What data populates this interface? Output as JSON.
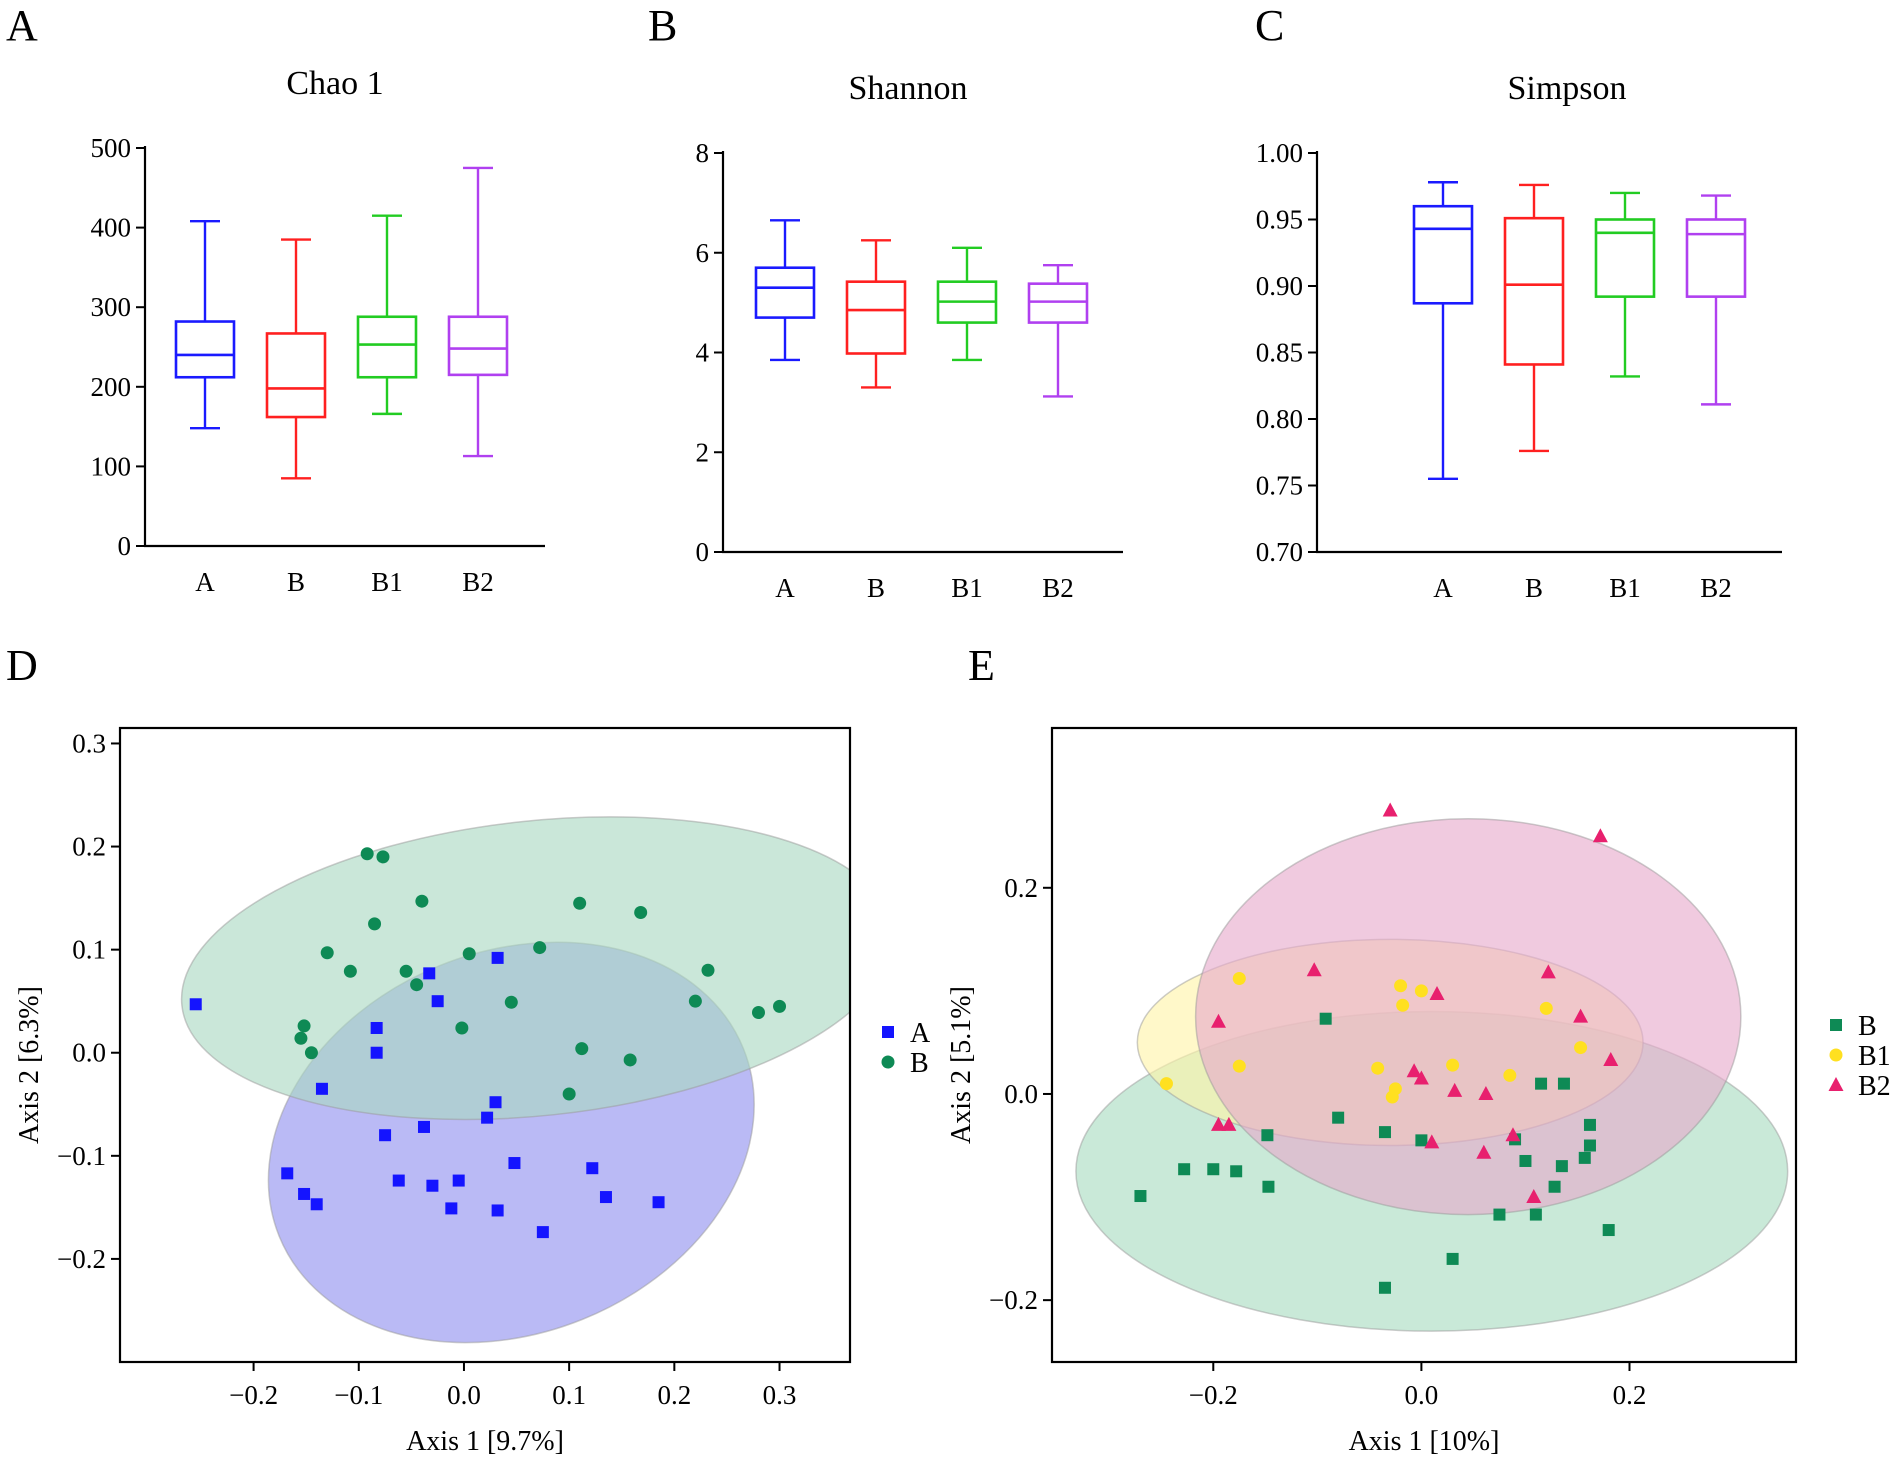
{
  "chart_data": [
    {
      "panel": "A",
      "type": "box",
      "title": "Chao 1",
      "categories": [
        "A",
        "B",
        "B1",
        "B2"
      ],
      "ylim": [
        0,
        500
      ],
      "yticks": [
        "0",
        "100",
        "200",
        "300",
        "400",
        "500"
      ],
      "series": [
        {
          "name": "A",
          "color": "#1a1aff",
          "min": 148,
          "q1": 212,
          "median": 240,
          "q3": 282,
          "max": 408
        },
        {
          "name": "B",
          "color": "#ff2020",
          "min": 85,
          "q1": 162,
          "median": 198,
          "q3": 267,
          "max": 385
        },
        {
          "name": "B1",
          "color": "#22cc22",
          "min": 166,
          "q1": 212,
          "median": 253,
          "q3": 288,
          "max": 415
        },
        {
          "name": "B2",
          "color": "#b040f0",
          "min": 113,
          "q1": 215,
          "median": 248,
          "q3": 288,
          "max": 475
        }
      ]
    },
    {
      "panel": "B",
      "type": "box",
      "title": "Shannon",
      "categories": [
        "A",
        "B",
        "B1",
        "B2"
      ],
      "ylim": [
        0,
        8
      ],
      "yticks": [
        "0",
        "2",
        "4",
        "6",
        "8"
      ],
      "series": [
        {
          "name": "A",
          "color": "#1a1aff",
          "min": 3.85,
          "q1": 4.7,
          "median": 5.3,
          "q3": 5.7,
          "max": 6.65
        },
        {
          "name": "B",
          "color": "#ff2020",
          "min": 3.3,
          "q1": 3.98,
          "median": 4.85,
          "q3": 5.42,
          "max": 6.25
        },
        {
          "name": "B1",
          "color": "#22cc22",
          "min": 3.85,
          "q1": 4.6,
          "median": 5.02,
          "q3": 5.42,
          "max": 6.1
        },
        {
          "name": "B2",
          "color": "#b040f0",
          "min": 3.12,
          "q1": 4.6,
          "median": 5.02,
          "q3": 5.38,
          "max": 5.75
        }
      ]
    },
    {
      "panel": "C",
      "type": "box",
      "title": "Simpson",
      "categories": [
        "A",
        "B",
        "B1",
        "B2"
      ],
      "ylim": [
        0.7,
        1.0
      ],
      "yticks": [
        "0.70",
        "0.75",
        "0.80",
        "0.85",
        "0.90",
        "0.95",
        "1.00"
      ],
      "series": [
        {
          "name": "A",
          "color": "#1a1aff",
          "min": 0.755,
          "q1": 0.887,
          "median": 0.943,
          "q3": 0.96,
          "max": 0.978
        },
        {
          "name": "B",
          "color": "#ff2020",
          "min": 0.776,
          "q1": 0.841,
          "median": 0.901,
          "q3": 0.951,
          "max": 0.976
        },
        {
          "name": "B1",
          "color": "#22cc22",
          "min": 0.832,
          "q1": 0.892,
          "median": 0.94,
          "q3": 0.95,
          "max": 0.97
        },
        {
          "name": "B2",
          "color": "#b040f0",
          "min": 0.811,
          "q1": 0.892,
          "median": 0.939,
          "q3": 0.95,
          "max": 0.968
        }
      ]
    },
    {
      "panel": "D",
      "type": "scatter",
      "xlabel": "Axis 1 [9.7%]",
      "ylabel": "Axis 2 [6.3%]",
      "xlim": [
        -0.327,
        0.367
      ],
      "ylim": [
        -0.3,
        0.315
      ],
      "xticks": [
        -0.2,
        -0.1,
        0.0,
        0.1,
        0.2,
        0.3
      ],
      "xtick_labels": [
        "−0.2",
        "−0.1",
        "0.0",
        "0.1",
        "0.2",
        "0.3"
      ],
      "yticks": [
        -0.2,
        -0.1,
        0.0,
        0.1,
        0.2,
        0.3
      ],
      "ytick_labels": [
        "−0.2",
        "−0.1",
        "0.0",
        "0.1",
        "0.2",
        "0.3"
      ],
      "legend_position": "right",
      "series": [
        {
          "name": "A",
          "marker": "square",
          "color": "#1414ff",
          "ellipse": {
            "cx": 0.045,
            "cy": -0.087,
            "rx": 0.238,
            "ry": 0.185,
            "angle": -22,
            "fill": "#8f8fef"
          },
          "points": [
            [
              -0.255,
              0.047
            ],
            [
              -0.033,
              0.077
            ],
            [
              0.032,
              0.092
            ],
            [
              -0.025,
              0.05
            ],
            [
              -0.083,
              0.024
            ],
            [
              -0.083,
              0.0
            ],
            [
              -0.135,
              -0.035
            ],
            [
              0.03,
              -0.048
            ],
            [
              0.022,
              -0.063
            ],
            [
              -0.038,
              -0.072
            ],
            [
              -0.075,
              -0.08
            ],
            [
              -0.168,
              -0.117
            ],
            [
              -0.062,
              -0.124
            ],
            [
              -0.03,
              -0.129
            ],
            [
              -0.005,
              -0.124
            ],
            [
              0.048,
              -0.107
            ],
            [
              0.122,
              -0.112
            ],
            [
              -0.152,
              -0.137
            ],
            [
              -0.14,
              -0.147
            ],
            [
              -0.012,
              -0.151
            ],
            [
              0.032,
              -0.153
            ],
            [
              0.135,
              -0.14
            ],
            [
              0.075,
              -0.174
            ],
            [
              0.185,
              -0.145
            ]
          ]
        },
        {
          "name": "B",
          "marker": "circle",
          "color": "#0e8a55",
          "ellipse": {
            "cx": 0.07,
            "cy": 0.082,
            "rx": 0.34,
            "ry": 0.143,
            "angle": -6,
            "fill": "#aad9c1"
          },
          "points": [
            [
              -0.092,
              0.193
            ],
            [
              -0.077,
              0.19
            ],
            [
              -0.04,
              0.147
            ],
            [
              -0.085,
              0.125
            ],
            [
              0.11,
              0.145
            ],
            [
              0.168,
              0.136
            ],
            [
              -0.13,
              0.097
            ],
            [
              0.005,
              0.096
            ],
            [
              0.072,
              0.102
            ],
            [
              -0.108,
              0.079
            ],
            [
              -0.055,
              0.079
            ],
            [
              -0.045,
              0.066
            ],
            [
              0.045,
              0.049
            ],
            [
              0.232,
              0.08
            ],
            [
              0.22,
              0.05
            ],
            [
              0.28,
              0.039
            ],
            [
              0.3,
              0.045
            ],
            [
              -0.152,
              0.026
            ],
            [
              -0.155,
              0.014
            ],
            [
              -0.145,
              0.0
            ],
            [
              -0.002,
              0.024
            ],
            [
              0.112,
              0.004
            ],
            [
              0.158,
              -0.007
            ],
            [
              0.1,
              -0.04
            ]
          ]
        }
      ]
    },
    {
      "panel": "E",
      "type": "scatter",
      "xlabel": "Axis 1 [10%]",
      "ylabel": "Axis 2 [5.1%]",
      "xlim": [
        -0.355,
        0.36
      ],
      "ylim": [
        -0.26,
        0.355
      ],
      "xticks": [
        -0.2,
        0.0,
        0.2
      ],
      "xtick_labels": [
        "−0.2",
        "0.0",
        "0.2"
      ],
      "yticks": [
        -0.2,
        0.0,
        0.2
      ],
      "yticks_labels": [
        "−0.2",
        "0.0",
        "0.2"
      ],
      "legend_position": "right",
      "series": [
        {
          "name": "B",
          "marker": "square",
          "color": "#0e8a55",
          "ellipse": {
            "cx": 0.01,
            "cy": -0.075,
            "rx": 0.342,
            "ry": 0.155,
            "angle": 0,
            "fill": "#a8dcc0"
          },
          "points": [
            [
              -0.27,
              -0.099
            ],
            [
              -0.228,
              -0.073
            ],
            [
              -0.2,
              -0.073
            ],
            [
              -0.178,
              -0.075
            ],
            [
              -0.148,
              -0.04
            ],
            [
              -0.147,
              -0.09
            ],
            [
              -0.092,
              0.073
            ],
            [
              -0.08,
              -0.023
            ],
            [
              -0.035,
              -0.037
            ],
            [
              0.0,
              -0.045
            ],
            [
              -0.035,
              -0.188
            ],
            [
              0.03,
              -0.16
            ],
            [
              0.075,
              -0.117
            ],
            [
              0.09,
              -0.044
            ],
            [
              0.11,
              -0.117
            ],
            [
              0.115,
              0.01
            ],
            [
              0.1,
              -0.065
            ],
            [
              0.128,
              -0.09
            ],
            [
              0.137,
              0.01
            ],
            [
              0.135,
              -0.07
            ],
            [
              0.157,
              -0.062
            ],
            [
              0.162,
              -0.03
            ],
            [
              0.162,
              -0.05
            ],
            [
              0.18,
              -0.132
            ]
          ]
        },
        {
          "name": "B1",
          "marker": "circle",
          "color": "#ffe020",
          "ellipse": {
            "cx": -0.03,
            "cy": 0.05,
            "rx": 0.243,
            "ry": 0.1,
            "angle": 0,
            "fill": "#fff4a8"
          },
          "points": [
            [
              -0.245,
              0.01
            ],
            [
              -0.175,
              0.112
            ],
            [
              -0.175,
              0.027
            ],
            [
              -0.02,
              0.105
            ],
            [
              -0.018,
              0.086
            ],
            [
              0.0,
              0.1
            ],
            [
              -0.042,
              0.025
            ],
            [
              -0.028,
              -0.003
            ],
            [
              -0.025,
              0.005
            ],
            [
              0.03,
              0.028
            ],
            [
              0.085,
              0.018
            ],
            [
              0.12,
              0.083
            ],
            [
              0.153,
              0.045
            ]
          ]
        },
        {
          "name": "B2",
          "marker": "triangle",
          "color": "#e8206e",
          "ellipse": {
            "cx": 0.045,
            "cy": 0.075,
            "rx": 0.262,
            "ry": 0.192,
            "angle": 0,
            "fill": "#e6a9cc"
          },
          "points": [
            [
              -0.03,
              0.275
            ],
            [
              0.172,
              0.25
            ],
            [
              -0.103,
              0.12
            ],
            [
              0.015,
              0.097
            ],
            [
              0.122,
              0.118
            ],
            [
              0.153,
              0.075
            ],
            [
              -0.195,
              0.07
            ],
            [
              -0.007,
              0.022
            ],
            [
              0.0,
              0.015
            ],
            [
              0.032,
              0.003
            ],
            [
              0.062,
              0.0
            ],
            [
              0.182,
              0.033
            ],
            [
              -0.195,
              -0.03
            ],
            [
              -0.185,
              -0.03
            ],
            [
              0.01,
              -0.047
            ],
            [
              0.06,
              -0.057
            ],
            [
              0.088,
              -0.04
            ],
            [
              0.108,
              -0.1
            ]
          ]
        }
      ]
    }
  ],
  "panel_labels": [
    "A",
    "B",
    "C",
    "D",
    "E"
  ]
}
